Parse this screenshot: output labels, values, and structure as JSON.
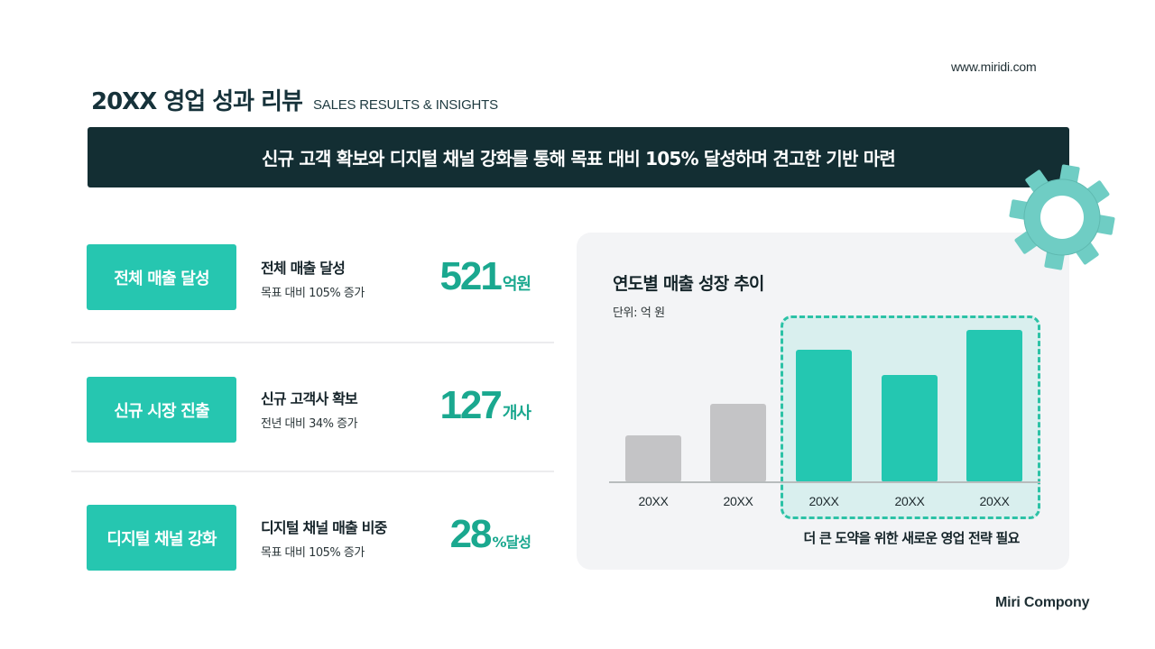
{
  "header": {
    "site_url": "www.miridi.com",
    "title": "20XX 영업 성과 리뷰",
    "subtitle": "SALES RESULTS & INSIGHTS"
  },
  "banner": {
    "text": "신규 고객 확보와 디지털 채널 강화를 통해 목표 대비 105% 달성하며 견고한 기반 마련",
    "background": "#132e33"
  },
  "kpis": [
    {
      "tag": "전체 매출 달성",
      "heading": "전체 매출 달성",
      "subtext": "목표 대비 105% 증가",
      "value": "521",
      "unit": "억원"
    },
    {
      "tag": "신규 시장 진출",
      "heading": "신규 고객사 확보",
      "subtext": "전년 대비 34% 증가",
      "value": "127",
      "unit": "개사"
    },
    {
      "tag": "디지털 채널 강화",
      "heading": "디지털 채널 매출 비중",
      "subtext": "목표 대비 105% 증가",
      "value": "28",
      "unit": "%달성"
    }
  ],
  "chart": {
    "title": "연도별 매출 성장 추이",
    "unit_label": "단위: 억 원",
    "note": "더 큰 도약을 위한 새로운 영업 전략 필요"
  },
  "chart_data": {
    "type": "bar",
    "title": "연도별 매출 성장 추이",
    "subtitle": "단위: 억 원",
    "categories": [
      "20XX",
      "20XX",
      "20XX",
      "20XX",
      "20XX"
    ],
    "values": [
      52,
      87,
      147,
      119,
      169
    ],
    "values_note": "relative bar heights in px (no axis ticks shown)",
    "highlighted_indices": [
      2,
      3,
      4
    ],
    "colors": {
      "past": "#c4c4c6",
      "highlighted": "#24c7b1",
      "highlight_box": "#d9efee",
      "highlight_border": "#2cc2a6"
    },
    "annotation": "더 큰 도약을 위한 새로운 영업 전략 필요",
    "xlabel": "",
    "ylabel": "",
    "grid": false,
    "legend": "none"
  },
  "colors": {
    "accent": "#26c6b0",
    "accent_text": "#1aa88f",
    "dark": "#132e33",
    "gear": "#6fcdc4"
  },
  "footer": {
    "company": "Miri Compony"
  }
}
